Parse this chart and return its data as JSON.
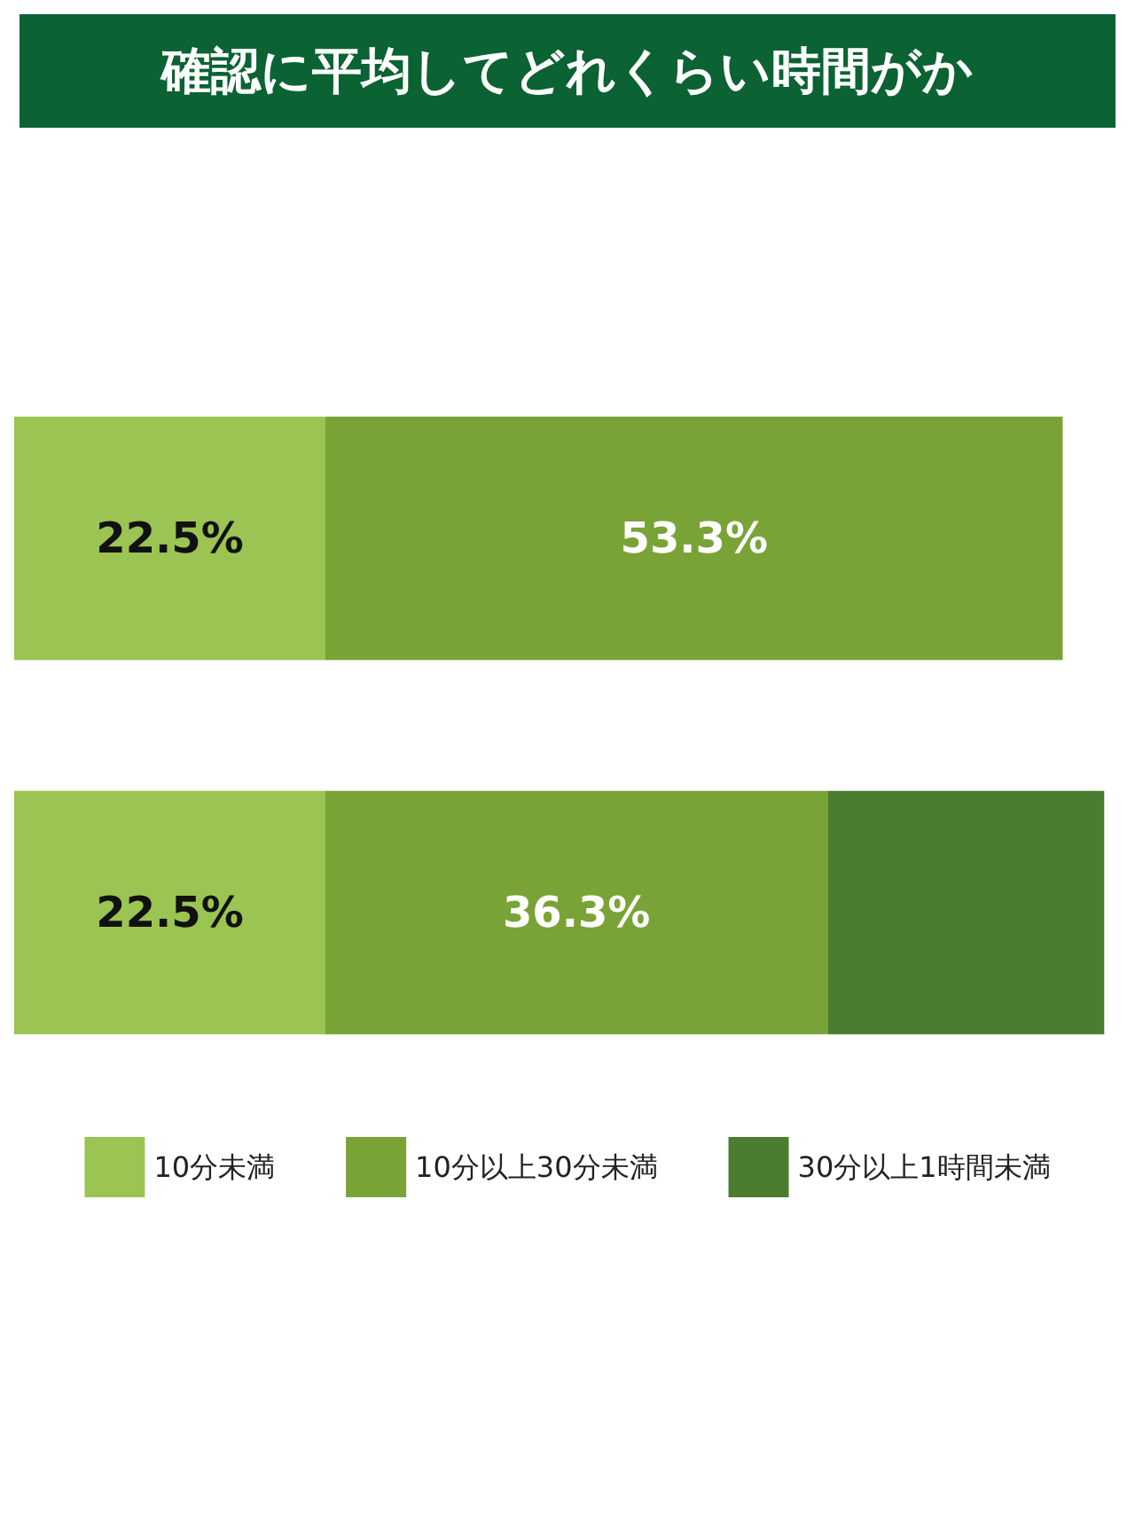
{
  "chart_data": {
    "type": "bar",
    "orientation": "horizontal",
    "stacked": true,
    "title": "確認に平均してどれくらい時間がか",
    "categories": [
      null,
      null
    ],
    "series": [
      {
        "name": "10分未満",
        "color": "#9bc453",
        "values": [
          22.5,
          22.5
        ],
        "value_labels": [
          "22.5%",
          "22.5%"
        ]
      },
      {
        "name": "10分以上30分未満",
        "color": "#7aa337",
        "values": [
          53.3,
          36.3
        ],
        "value_labels": [
          "53.3%",
          "36.3%"
        ]
      },
      {
        "name": "30分以上1時間未満",
        "color": "#4b7d30",
        "values": [
          null,
          20
        ],
        "value_labels": [
          null,
          null
        ]
      }
    ],
    "legend": "bottom"
  }
}
